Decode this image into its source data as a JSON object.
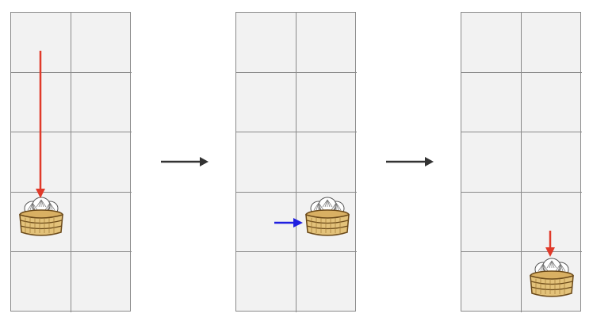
{
  "board": {
    "rows": 5,
    "cols": 2
  },
  "panels": [
    {
      "id": "panel-1",
      "item": {
        "name": "bun-basket-icon",
        "row": 4,
        "col": 1
      },
      "move": {
        "direction": "down",
        "color": "#e03a2a"
      }
    },
    {
      "id": "panel-2",
      "item": {
        "name": "bun-basket-icon",
        "row": 4,
        "col": 2
      },
      "move": {
        "direction": "right",
        "color": "#1f1fe0"
      }
    },
    {
      "id": "panel-3",
      "item": {
        "name": "bun-basket-icon",
        "row": 5,
        "col": 2
      },
      "move": {
        "direction": "down",
        "color": "#e03a2a"
      }
    }
  ],
  "transitions": [
    {
      "name": "step-arrow",
      "color": "#333333"
    },
    {
      "name": "step-arrow",
      "color": "#333333"
    }
  ],
  "colors": {
    "cell_fill": "#f2f2f2",
    "grid_line": "#8a8a8a",
    "basket": "#e3c27a",
    "basket_stroke": "#6b4a1a",
    "bun": "#ffffff"
  }
}
